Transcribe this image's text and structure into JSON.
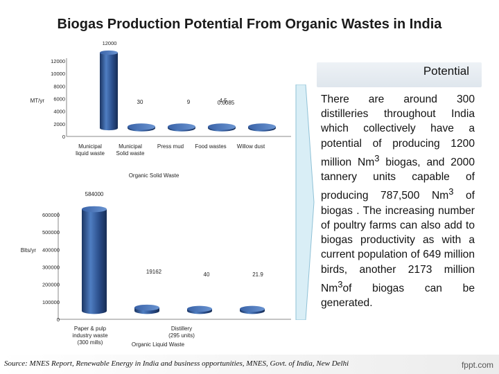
{
  "title": "Biogas Production Potential From Organic Wastes in India",
  "colors": {
    "bar_front": "#2a4d8a",
    "bar_light": "#4f7ec2",
    "bar_dark": "#1b3563",
    "axis": "#444444"
  },
  "panel": {
    "label": "Potential",
    "body_html": "There are around 300 distilleries throughout India which collectively have a potential of producing 1200 million Nm<sup>3</sup> biogas, and 2000 tannery units capable of producing 787,500 Nm<sup>3</sup> of biogas . The increasing number of poultry farms can also add to biogas productivity as with a current population of 649 million birds, another 2173 million Nm<sup>3</sup>of biogas can be generated."
  },
  "source": "Source: MNES Report, Renewable Energy in India and business opportunities, MNES, Govt. of India, New Delhi",
  "brand": "fppt.com",
  "chart_data": [
    {
      "type": "bar",
      "title": "Organic Solid Waste",
      "top_label": "12000",
      "ylabel": "MT/yr",
      "categories": [
        "Municipal liquid waste",
        "Municipal Solid waste",
        "Press mud",
        "Food wastes",
        "Willow dust"
      ],
      "values": [
        12000,
        30,
        9,
        4.5,
        0.0085
      ],
      "data_labels": [
        "12000",
        "30",
        "9",
        "4.5",
        "0.0085"
      ],
      "ylim": [
        0,
        12000
      ],
      "yticks": [
        "0",
        "2000",
        "4000",
        "6000",
        "8000",
        "10000",
        "12000"
      ],
      "ytick_values": [
        0,
        2000,
        4000,
        6000,
        8000,
        10000,
        12000
      ],
      "grid": false,
      "style": "3d-cylinder"
    },
    {
      "type": "bar",
      "title": "Organic Liquid Waste",
      "ylabel": "Blts/yr",
      "categories": [
        "Paper & pulp industry waste (300 mills)",
        "Distillery (295 units)",
        "",
        ""
      ],
      "values": [
        584000,
        19162,
        40,
        21.9
      ],
      "data_labels": [
        "584000",
        "19162",
        "40",
        "21.9"
      ],
      "ylim": [
        0,
        600000
      ],
      "yticks": [
        "0",
        "100000",
        "200000",
        "300000",
        "400000",
        "500000",
        "600000"
      ],
      "ytick_values": [
        0,
        100000,
        200000,
        300000,
        400000,
        500000,
        600000
      ],
      "grid": false,
      "style": "3d-cylinder"
    }
  ]
}
